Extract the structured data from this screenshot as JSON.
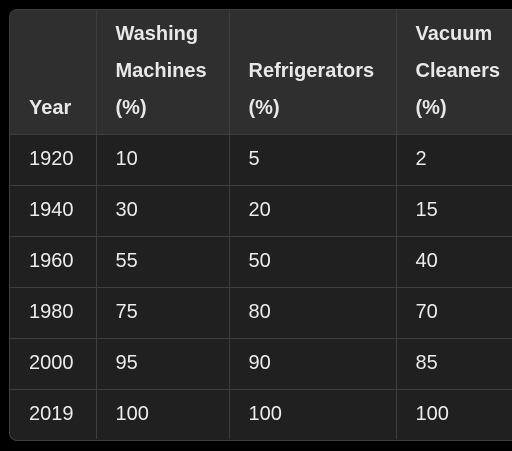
{
  "table": {
    "headers": [
      {
        "lines": [
          "Year"
        ]
      },
      {
        "lines": [
          "Washing",
          "Machines",
          "(%)"
        ]
      },
      {
        "lines": [
          "Refrigerators",
          "(%)"
        ]
      },
      {
        "lines": [
          "Vacuum",
          "Cleaners",
          "(%)"
        ]
      }
    ],
    "rows": [
      [
        "1920",
        "10",
        "5",
        "2"
      ],
      [
        "1940",
        "30",
        "20",
        "15"
      ],
      [
        "1960",
        "55",
        "50",
        "40"
      ],
      [
        "1980",
        "75",
        "80",
        "70"
      ],
      [
        "2000",
        "95",
        "90",
        "85"
      ],
      [
        "2019",
        "100",
        "100",
        "100"
      ]
    ]
  },
  "colors": {
    "background": "#000000",
    "table_body": "#202020",
    "table_header": "#2f2f2f",
    "border": "#3e3e3e",
    "text": "#ececec"
  }
}
